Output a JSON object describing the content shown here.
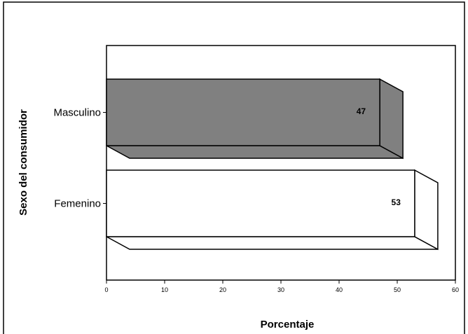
{
  "chart_data": {
    "type": "bar",
    "orientation": "horizontal",
    "style": "3d",
    "categories": [
      "Masculino",
      "Femenino"
    ],
    "values": [
      47,
      53
    ],
    "data_labels": [
      "47",
      "53"
    ],
    "xlabel": "Porcentaje",
    "ylabel": "Sexo del consumidor",
    "xlim": [
      0,
      60
    ],
    "xticks": [
      "0",
      "10",
      "20",
      "30",
      "40",
      "50",
      "60"
    ],
    "grid": false,
    "legend": "none",
    "bar_colors": [
      "#808080",
      "#ffffff"
    ]
  }
}
